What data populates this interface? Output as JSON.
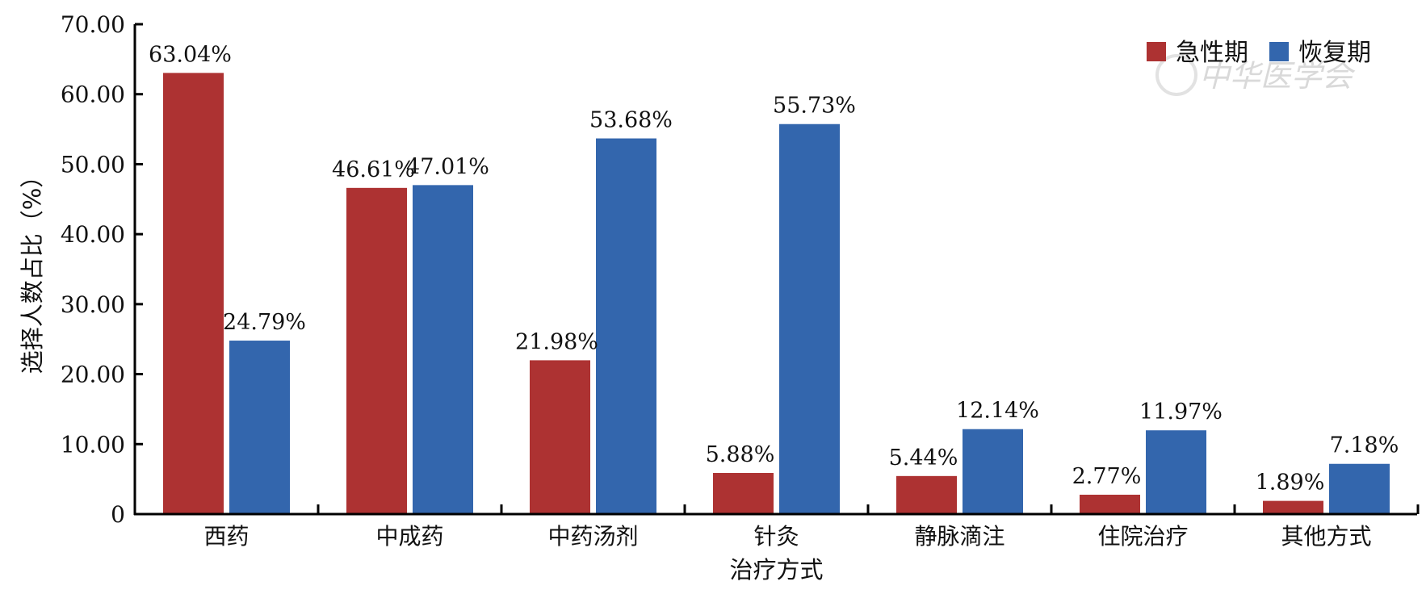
{
  "chart_data": {
    "type": "bar",
    "xlabel": "治疗方式",
    "ylabel": "选择人数占比（%）",
    "ylim": [
      0,
      70
    ],
    "yticks": [
      "0",
      "10.00",
      "20.00",
      "30.00",
      "40.00",
      "50.00",
      "60.00",
      "70.00"
    ],
    "categories": [
      "西药",
      "中成药",
      "中药汤剂",
      "针灸",
      "静脉滴注",
      "住院治疗",
      "其他方式"
    ],
    "series": [
      {
        "name": "急性期",
        "color": "#ad3232",
        "values": [
          63.04,
          46.61,
          21.98,
          5.88,
          5.44,
          2.77,
          1.89
        ],
        "labels": [
          "63.04%",
          "46.61%",
          "21.98%",
          "5.88%",
          "5.44%",
          "2.77%",
          "1.89%"
        ]
      },
      {
        "name": "恢复期",
        "color": "#3366ad",
        "values": [
          24.79,
          47.01,
          53.68,
          55.73,
          12.14,
          11.97,
          7.18
        ],
        "labels": [
          "24.79%",
          "47.01%",
          "53.68%",
          "55.73%",
          "12.14%",
          "11.97%",
          "7.18%"
        ]
      }
    ],
    "legend_position": "top-right",
    "grid": false
  },
  "watermark": "中华医学会"
}
